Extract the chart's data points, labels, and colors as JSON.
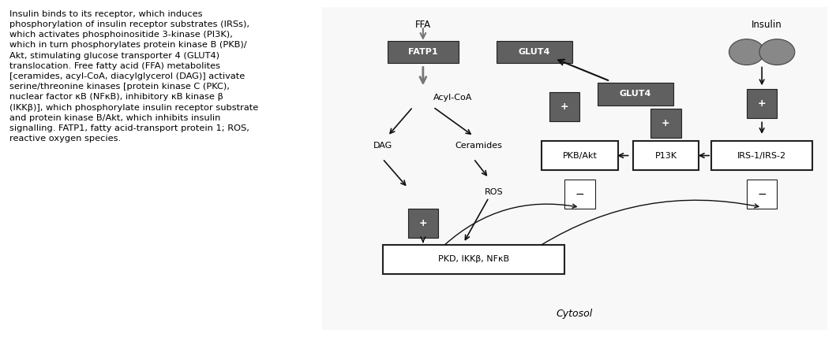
{
  "fig_width": 10.59,
  "fig_height": 4.28,
  "dpi": 100,
  "bg_color": "#ffffff",
  "left_text": "Insulin binds to its receptor, which induces\nphosphorylation of insulin receptor substrates (IRSs),\nwhich activates phosphoinositide 3-kinase (PI3K),\nwhich in turn phosphorylates protein kinase B (PKB)/\nAkt, stimulating glucose transporter 4 (GLUT4)\ntranslocation. Free fatty acid (FFA) metabolites\n[ceramides, acyl-CoA, diacylglycerol (DAG)] activate\nserine/threonine kinases [protein kinase C (PKC),\nnuclear factor κB (NFκB), inhibitory κB kinase β\n(IKKβ)], which phosphorylate insulin receptor substrate\nand protein kinase B/Akt, which inhibits insulin\nsignalling. FATP1, fatty acid-transport protein 1; ROS,\nreactive oxygen species.",
  "cytosol_label": "Cytosol",
  "dark_gray": "#606060",
  "box_edge": "#222222"
}
